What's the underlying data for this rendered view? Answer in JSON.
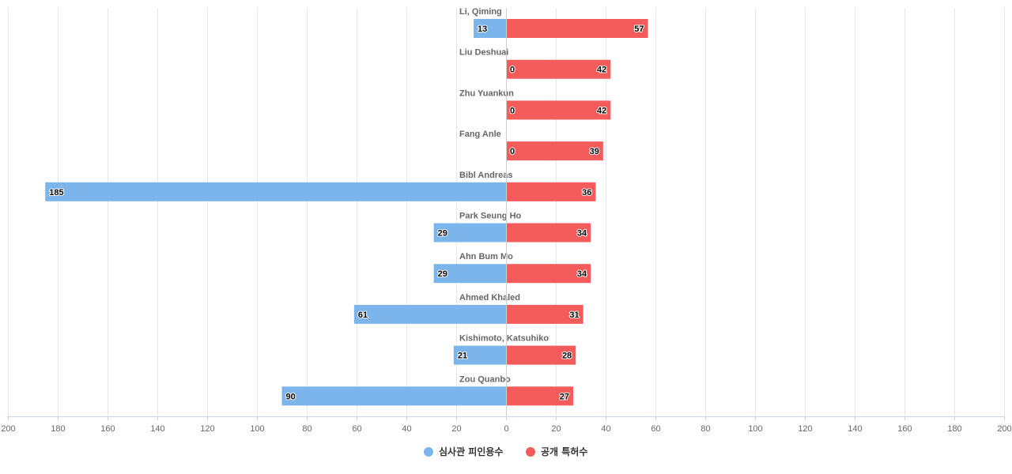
{
  "chart_data": {
    "type": "bar",
    "orientation": "horizontal-diverging",
    "categories": [
      "Li, Qiming",
      "Liu Deshuai",
      "Zhu Yuankun",
      "Fang Anle",
      "Bibl Andreas",
      "Park Seung Ho",
      "Ahn Bum Mo",
      "Ahmed Khaled",
      "Kishimoto, Katsuhiko",
      "Zou Quanbo"
    ],
    "series": [
      {
        "name": "심사관 피인용수",
        "side": "left",
        "color": "#7cb5ec",
        "values": [
          13,
          0,
          0,
          0,
          185,
          29,
          29,
          61,
          21,
          90
        ]
      },
      {
        "name": "공개 특허수",
        "side": "right",
        "color": "#f45b5b",
        "values": [
          57,
          42,
          42,
          39,
          36,
          34,
          34,
          31,
          28,
          27
        ]
      }
    ],
    "x_ticks": [
      "200",
      "180",
      "160",
      "140",
      "120",
      "100",
      "80",
      "60",
      "40",
      "20",
      "0",
      "20",
      "40",
      "60",
      "80",
      "100",
      "120",
      "140",
      "160",
      "180",
      "200"
    ],
    "xlim": [
      -200,
      200
    ],
    "grid": true,
    "legend_position": "bottom-center",
    "title": "",
    "xlabel": "",
    "ylabel": ""
  }
}
